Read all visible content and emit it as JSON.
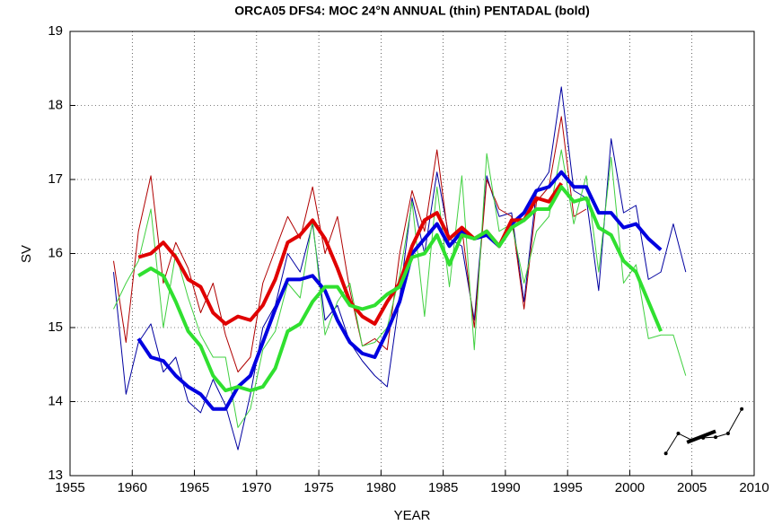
{
  "chart_data": {
    "type": "line",
    "title": "ORCA05 DFS4: MOC 24°N ANNUAL (thin) PENTADAL (bold)",
    "xlabel": "YEAR",
    "ylabel": "SV",
    "xlim": [
      1955,
      2010
    ],
    "ylim": [
      13,
      19
    ],
    "xticks": [
      1955,
      1960,
      1965,
      1970,
      1975,
      1980,
      1985,
      1990,
      1995,
      2000,
      2005,
      2010
    ],
    "yticks": [
      13,
      14,
      15,
      16,
      17,
      18,
      19
    ],
    "grid": true,
    "series": [
      {
        "color": "#0000a0",
        "linewidth": 1,
        "x": [
          1958.5,
          1959.5,
          1960.5,
          1961.5,
          1962.5,
          1963.5,
          1964.5,
          1965.5,
          1966.5,
          1967.5,
          1968.5,
          1969.5,
          1970.5,
          1971.5,
          1972.5,
          1973.5,
          1974.5,
          1975.5,
          1976.5,
          1977.5,
          1978.5,
          1979.5,
          1980.5,
          1981.5,
          1982.5,
          1983.5,
          1984.5,
          1985.5,
          1986.5,
          1987.5,
          1988.5,
          1989.5,
          1990.5,
          1991.5,
          1992.5,
          1993.5,
          1994.5,
          1995.5,
          1996.5,
          1997.5,
          1998.5,
          1999.5,
          2000.5,
          2001.5,
          2002.5,
          2003.5,
          2004.5
        ],
        "values": [
          15.75,
          14.1,
          14.8,
          15.05,
          14.4,
          14.6,
          14.0,
          13.85,
          14.3,
          13.95,
          13.35,
          14.1,
          15.0,
          15.3,
          16.0,
          15.75,
          16.4,
          15.1,
          15.3,
          14.8,
          14.55,
          14.35,
          14.2,
          15.4,
          16.75,
          16.0,
          17.1,
          16.2,
          16.1,
          15.1,
          17.05,
          16.5,
          16.55,
          15.35,
          16.85,
          17.1,
          18.25,
          16.85,
          16.75,
          15.5,
          17.55,
          16.55,
          16.65,
          15.65,
          15.75,
          16.4,
          15.75
        ]
      },
      {
        "color": "#b00000",
        "linewidth": 1,
        "x": [
          1958.5,
          1959.5,
          1960.5,
          1961.5,
          1962.5,
          1963.5,
          1964.5,
          1965.5,
          1966.5,
          1967.5,
          1968.5,
          1969.5,
          1970.5,
          1971.5,
          1972.5,
          1973.5,
          1974.5,
          1975.5,
          1976.5,
          1977.5,
          1978.5,
          1979.5,
          1980.5,
          1981.5,
          1982.5,
          1983.5,
          1984.5,
          1985.5,
          1986.5,
          1987.5,
          1988.5,
          1989.5,
          1990.5,
          1991.5,
          1992.5,
          1993.5,
          1994.5,
          1995.5,
          1996.5
        ],
        "values": [
          15.9,
          14.8,
          16.3,
          17.05,
          15.6,
          16.15,
          15.8,
          15.2,
          15.6,
          14.9,
          14.4,
          14.6,
          15.6,
          16.05,
          16.5,
          16.2,
          16.9,
          16.0,
          16.5,
          15.5,
          14.75,
          14.85,
          14.7,
          16.0,
          16.85,
          16.3,
          17.4,
          16.1,
          16.35,
          15.0,
          17.0,
          16.6,
          16.5,
          15.25,
          16.7,
          16.9,
          17.85,
          16.5,
          16.6
        ]
      },
      {
        "color": "#40d040",
        "linewidth": 1,
        "x": [
          1958.5,
          1959.5,
          1960.5,
          1961.5,
          1962.5,
          1963.5,
          1964.5,
          1965.5,
          1966.5,
          1967.5,
          1968.5,
          1969.5,
          1970.5,
          1971.5,
          1972.5,
          1973.5,
          1974.5,
          1975.5,
          1976.5,
          1977.5,
          1978.5,
          1979.5,
          1980.5,
          1981.5,
          1982.5,
          1983.5,
          1984.5,
          1985.5,
          1986.5,
          1987.5,
          1988.5,
          1989.5,
          1990.5,
          1991.5,
          1992.5,
          1993.5,
          1994.5,
          1995.5,
          1996.5,
          1997.5,
          1998.5,
          1999.5,
          2000.5,
          2001.5,
          2002.5,
          2003.5,
          2004.5
        ],
        "values": [
          15.25,
          15.6,
          15.9,
          16.6,
          15.0,
          16.0,
          15.4,
          14.9,
          14.6,
          14.6,
          13.65,
          13.9,
          14.7,
          14.95,
          15.6,
          15.4,
          16.45,
          14.9,
          15.35,
          15.6,
          14.75,
          14.8,
          15.0,
          15.7,
          16.7,
          15.15,
          16.9,
          15.55,
          17.05,
          14.7,
          17.35,
          16.3,
          16.4,
          15.6,
          16.3,
          16.5,
          17.4,
          16.4,
          17.05,
          15.75,
          17.3,
          15.6,
          15.85,
          14.85,
          14.9,
          14.9,
          14.35
        ]
      },
      {
        "color": "#0000e0",
        "linewidth": 4,
        "x": [
          1960.5,
          1961.5,
          1962.5,
          1963.5,
          1964.5,
          1965.5,
          1966.5,
          1967.5,
          1968.5,
          1969.5,
          1970.5,
          1971.5,
          1972.5,
          1973.5,
          1974.5,
          1975.5,
          1976.5,
          1977.5,
          1978.5,
          1979.5,
          1980.5,
          1981.5,
          1982.5,
          1983.5,
          1984.5,
          1985.5,
          1986.5,
          1987.5,
          1988.5,
          1989.5,
          1990.5,
          1991.5,
          1992.5,
          1993.5,
          1994.5,
          1995.5,
          1996.5,
          1997.5,
          1998.5,
          1999.5,
          2000.5,
          2001.5,
          2002.5
        ],
        "values": [
          14.85,
          14.6,
          14.55,
          14.35,
          14.2,
          14.1,
          13.9,
          13.9,
          14.2,
          14.35,
          14.8,
          15.25,
          15.65,
          15.65,
          15.7,
          15.5,
          15.1,
          14.8,
          14.65,
          14.6,
          14.95,
          15.35,
          16.0,
          16.2,
          16.4,
          16.1,
          16.3,
          16.2,
          16.25,
          16.1,
          16.4,
          16.55,
          16.85,
          16.9,
          17.1,
          16.9,
          16.9,
          16.55,
          16.55,
          16.35,
          16.4,
          16.2,
          16.05
        ]
      },
      {
        "color": "#e00000",
        "linewidth": 4,
        "x": [
          1960.5,
          1961.5,
          1962.5,
          1963.5,
          1964.5,
          1965.5,
          1966.5,
          1967.5,
          1968.5,
          1969.5,
          1970.5,
          1971.5,
          1972.5,
          1973.5,
          1974.5,
          1975.5,
          1976.5,
          1977.5,
          1978.5,
          1979.5,
          1980.5,
          1981.5,
          1982.5,
          1983.5,
          1984.5,
          1985.5,
          1986.5,
          1987.5,
          1988.5,
          1989.5,
          1990.5,
          1991.5,
          1992.5,
          1993.5,
          1994.5
        ],
        "values": [
          15.95,
          16.0,
          16.15,
          15.95,
          15.65,
          15.55,
          15.2,
          15.05,
          15.15,
          15.1,
          15.3,
          15.65,
          16.15,
          16.25,
          16.45,
          16.2,
          15.8,
          15.35,
          15.15,
          15.05,
          15.35,
          15.6,
          16.1,
          16.45,
          16.55,
          16.2,
          16.35,
          16.2,
          16.3,
          16.1,
          16.45,
          16.45,
          16.75,
          16.7,
          16.95
        ]
      },
      {
        "color": "#30e030",
        "linewidth": 4,
        "x": [
          1960.5,
          1961.5,
          1962.5,
          1963.5,
          1964.5,
          1965.5,
          1966.5,
          1967.5,
          1968.5,
          1969.5,
          1970.5,
          1971.5,
          1972.5,
          1973.5,
          1974.5,
          1975.5,
          1976.5,
          1977.5,
          1978.5,
          1979.5,
          1980.5,
          1981.5,
          1982.5,
          1983.5,
          1984.5,
          1985.5,
          1986.5,
          1987.5,
          1988.5,
          1989.5,
          1990.5,
          1991.5,
          1992.5,
          1993.5,
          1994.5,
          1995.5,
          1996.5,
          1997.5,
          1998.5,
          1999.5,
          2000.5,
          2001.5,
          2002.5
        ],
        "values": [
          15.7,
          15.8,
          15.7,
          15.35,
          14.95,
          14.75,
          14.35,
          14.15,
          14.2,
          14.15,
          14.2,
          14.45,
          14.95,
          15.05,
          15.35,
          15.55,
          15.55,
          15.3,
          15.25,
          15.3,
          15.45,
          15.55,
          15.95,
          16.0,
          16.25,
          15.85,
          16.25,
          16.2,
          16.3,
          16.1,
          16.35,
          16.45,
          16.6,
          16.6,
          16.9,
          16.7,
          16.75,
          16.35,
          16.25,
          15.9,
          15.75,
          15.35,
          14.95
        ]
      },
      {
        "color": "#000000",
        "linewidth": 1,
        "markers": true,
        "x": [
          2002.9,
          2003.9,
          2005.0,
          2005.9,
          2006.9,
          2007.9,
          2009.0
        ],
        "values": [
          13.3,
          13.57,
          13.48,
          13.51,
          13.52,
          13.57,
          13.9
        ]
      },
      {
        "color": "#000000",
        "linewidth": 4,
        "x": [
          2004.6,
          2006.9
        ],
        "values": [
          13.45,
          13.6
        ]
      }
    ]
  }
}
